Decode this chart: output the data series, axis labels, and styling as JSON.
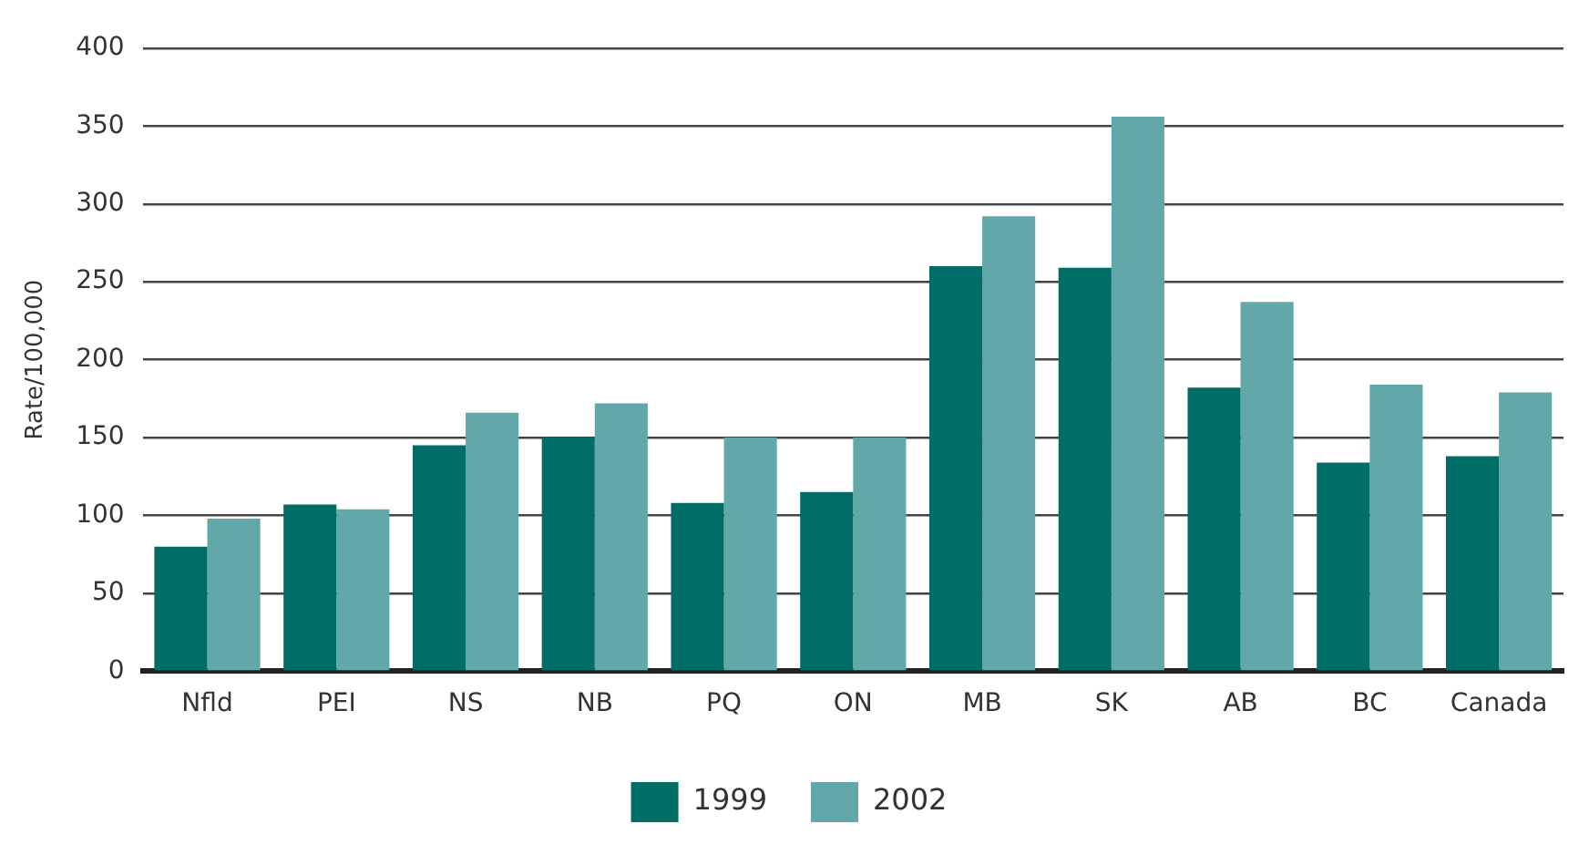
{
  "chart_data": {
    "type": "bar",
    "ylabel": "Rate/100,000",
    "categories": [
      "Nfld",
      "PEI",
      "NS",
      "NB",
      "PQ",
      "ON",
      "MB",
      "SK",
      "AB",
      "BC",
      "Canada"
    ],
    "series": [
      {
        "name": "1999",
        "color": "#006d66",
        "values": [
          80,
          107,
          145,
          150,
          108,
          115,
          260,
          259,
          182,
          134,
          138
        ]
      },
      {
        "name": "2002",
        "color": "#62a8a8",
        "values": [
          98,
          104,
          166,
          172,
          150,
          150,
          292,
          356,
          237,
          184,
          179
        ]
      }
    ],
    "ylim": [
      0,
      400
    ],
    "yticks": [
      0,
      50,
      100,
      150,
      200,
      250,
      300,
      350,
      400
    ],
    "grid": "y",
    "legend": "bottom"
  }
}
